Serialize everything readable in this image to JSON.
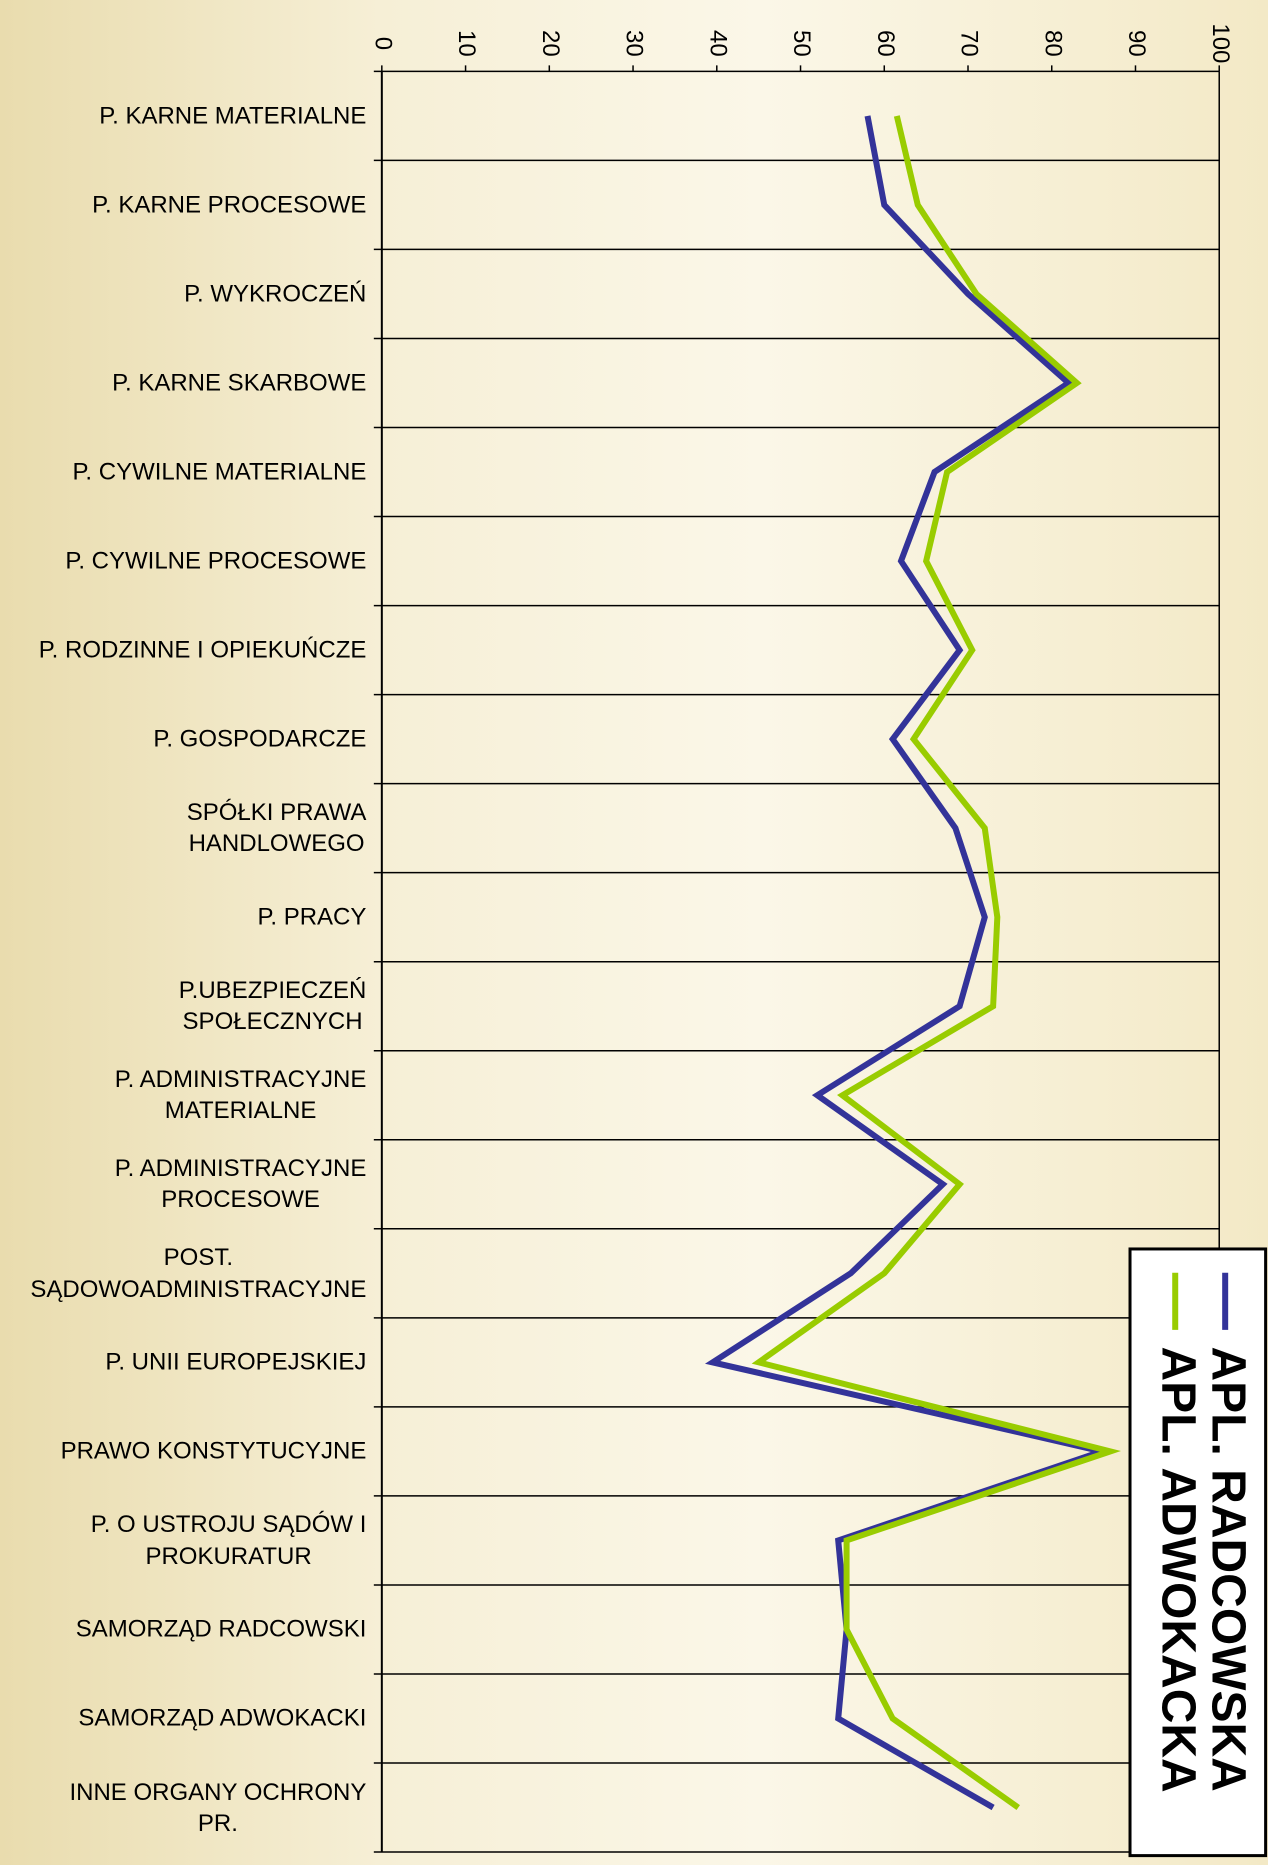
{
  "chart_data": {
    "type": "line",
    "orientation": "horizontal",
    "categories": [
      "P. KARNE MATERIALNE",
      "P. KARNE PROCESOWE",
      "P. WYKROCZEŃ",
      "P. KARNE SKARBOWE",
      "P. CYWILNE MATERIALNE",
      "P. CYWILNE PROCESOWE",
      "P. RODZINNE I OPIEKUŃCZE",
      "P. GOSPODARCZE",
      "SPÓŁKI PRAWA\nHANDLOWEGO",
      "P. PRACY",
      "P.UBEZPIECZEŃ\nSPOŁECZNYCH",
      "P. ADMINISTRACYJNE\nMATERIALNE",
      "P. ADMINISTRACYJNE\nPROCESOWE",
      "POST.\nSĄDOWOADMINISTRACYJNE",
      "P. UNII EUROPEJSKIEJ",
      "PRAWO KONSTYTUCYJNE",
      "P. O USTROJU SĄDÓW I\nPROKURATUR",
      "SAMORZĄD RADCOWSKI",
      "SAMORZĄD ADWOKACKI",
      "INNE ORGANY OCHRONY\nPR."
    ],
    "series": [
      {
        "name": "APL. RADCOWSKA",
        "color": "#333399",
        "values": [
          58,
          60,
          70,
          82,
          66,
          62,
          69,
          61,
          68.5,
          72,
          69,
          52,
          67,
          56,
          39.5,
          86,
          54.5,
          55.5,
          54.5,
          73
        ]
      },
      {
        "name": "APL. ADWOKACKA",
        "color": "#99cc00",
        "values": [
          61.5,
          64,
          71,
          83,
          67.5,
          65,
          70.5,
          63.5,
          72,
          73.5,
          73,
          55,
          69,
          60,
          45,
          87,
          55.5,
          55.5,
          61,
          76
        ]
      }
    ],
    "xlim": [
      0,
      100
    ],
    "xticks": [
      0,
      10,
      20,
      30,
      40,
      50,
      60,
      70,
      80,
      90,
      100
    ]
  }
}
